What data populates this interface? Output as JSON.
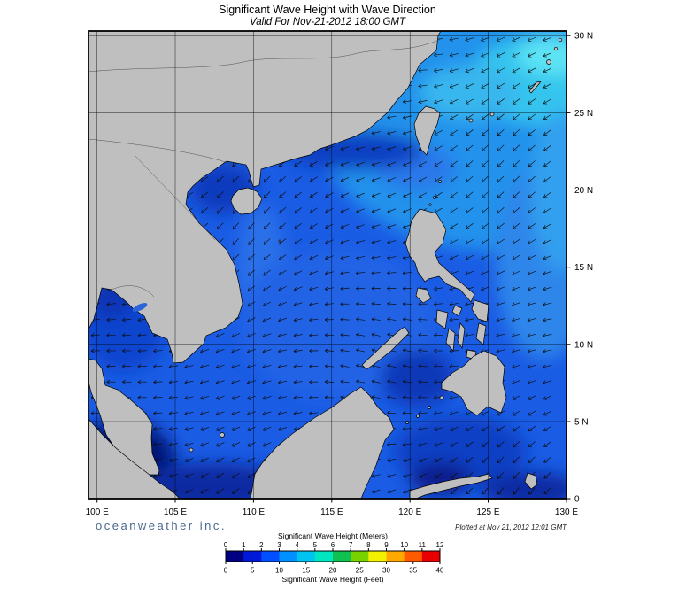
{
  "header": {
    "title": "Significant Wave Height with Wave Direction",
    "subtitle": "Valid For Nov-21-2012 18:00 GMT"
  },
  "axes": {
    "lon_labels": [
      "100 E",
      "105 E",
      "110 E",
      "115 E",
      "120 E",
      "125 E",
      "130 E"
    ],
    "lat_labels": [
      "30 N",
      "25 N",
      "20 N",
      "15 N",
      "10 N",
      "5 N",
      "0"
    ]
  },
  "legend": {
    "meters_label": "Significant Wave Height (Meters)",
    "feet_label": "Significant Wave Height (Feet)",
    "meters_ticks": [
      "0",
      "1",
      "2",
      "3",
      "4",
      "5",
      "6",
      "7",
      "8",
      "9",
      "10",
      "11",
      "12"
    ],
    "feet_ticks": [
      "0",
      "5",
      "10",
      "15",
      "20",
      "25",
      "30",
      "35",
      "40"
    ],
    "segment_colors": [
      "#000082",
      "#0018d8",
      "#0050ff",
      "#0090ff",
      "#00c4f0",
      "#00e6c0",
      "#10c050",
      "#78d200",
      "#f2f200",
      "#ffa800",
      "#ff5a00",
      "#e80000"
    ]
  },
  "footer": {
    "brand": "oceanweather inc.",
    "plotted": "Plotted at Nov 21, 2012 12:01 GMT"
  },
  "colors": {
    "land": "#bfbfbf",
    "sea_base": "#1a5ce4",
    "frame": "#000000"
  }
}
